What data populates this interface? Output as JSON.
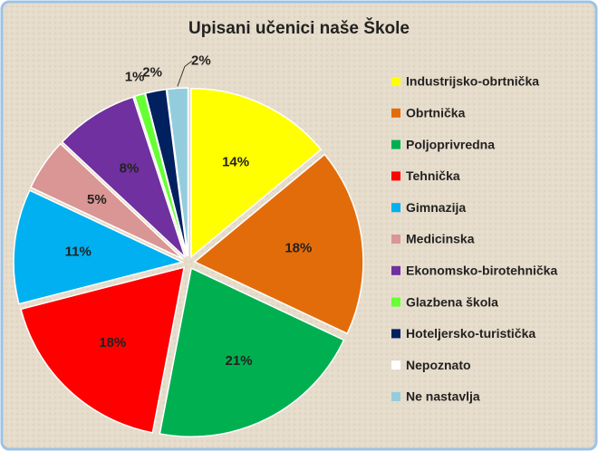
{
  "chart_data": {
    "type": "pie",
    "title": "Upisani učenici naše Škole",
    "categories": [
      "Industrijsko-obrtnička",
      "Obrtnička",
      "Poljoprivredna",
      "Tehnička",
      "Gimnazija",
      "Medicinska",
      "Ekonomsko-birotehnička",
      "Glazbena škola",
      "Hoteljersko-turistička",
      "Nepoznato",
      "Ne nastavlja"
    ],
    "values": [
      14,
      18,
      21,
      18,
      11,
      5,
      8,
      1,
      2,
      0,
      2
    ],
    "value_labels": [
      "14%",
      "18%",
      "21%",
      "18%",
      "11%",
      "5%",
      "8%",
      "1%",
      "2%",
      null,
      "2%"
    ],
    "colors": [
      "#ffff00",
      "#e36c0a",
      "#00b050",
      "#ff0000",
      "#00b0f0",
      "#d99694",
      "#7030a0",
      "#66ff33",
      "#002060",
      "#ffffff",
      "#93cddd"
    ],
    "legend": "right"
  }
}
